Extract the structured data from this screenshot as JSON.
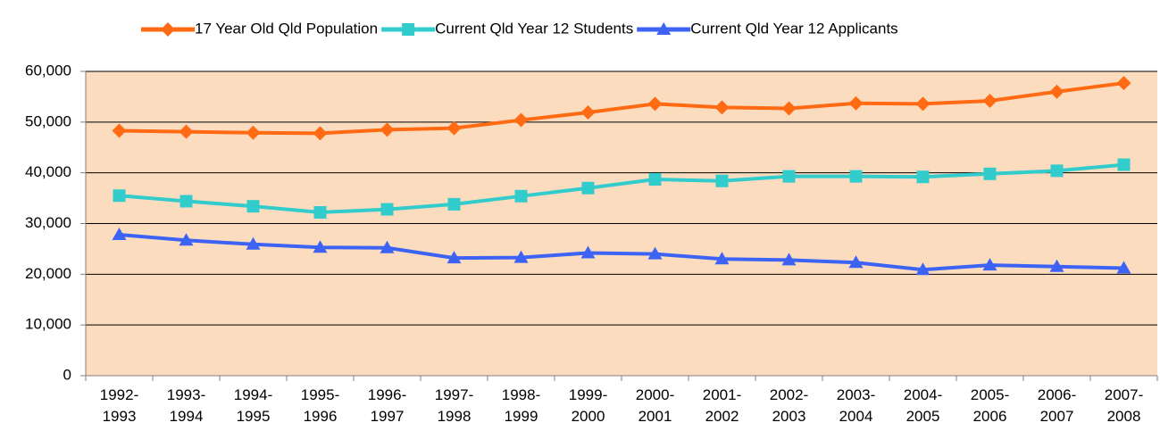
{
  "chart_data": {
    "type": "line",
    "categories": [
      "1992-1993",
      "1993-1994",
      "1994-1995",
      "1995-1996",
      "1996-1997",
      "1997-1998",
      "1998-1999",
      "1999-2000",
      "2000-2001",
      "2001-2002",
      "2002-2003",
      "2003-2004",
      "2004-2005",
      "2005-2006",
      "2006-2007",
      "2007-2008"
    ],
    "series": [
      {
        "name": "17 Year Old Qld Population",
        "color": "#ff6a13",
        "marker": "diamond",
        "values": [
          48300,
          48100,
          47900,
          47800,
          48500,
          48800,
          50400,
          51900,
          53600,
          52900,
          52700,
          53700,
          53600,
          54200,
          56000,
          57700
        ]
      },
      {
        "name": "Current Qld Year 12 Students",
        "color": "#33cccc",
        "marker": "square",
        "values": [
          35500,
          34400,
          33400,
          32200,
          32800,
          33800,
          35400,
          37000,
          38700,
          38400,
          39300,
          39300,
          39200,
          39800,
          40400,
          41600
        ]
      },
      {
        "name": "Current Qld Year 12 Applicants",
        "color": "#3d63f5",
        "marker": "triangle",
        "values": [
          27800,
          26700,
          25900,
          25300,
          25200,
          23200,
          23300,
          24200,
          24000,
          23000,
          22800,
          22300,
          20900,
          21800,
          21500,
          21200
        ]
      }
    ],
    "ylim": [
      0,
      60000
    ],
    "yticks": [
      0,
      {
        "value": 10000,
        "label": "10,000"
      },
      {
        "value": 20000,
        "label": "20,000"
      },
      {
        "value": 30000,
        "label": "30,000"
      },
      {
        "value": 40000,
        "label": "40,000"
      },
      {
        "value": 50000,
        "label": "50,000"
      },
      {
        "value": 60000,
        "label": "60,000"
      }
    ],
    "grid": true,
    "plot_background": "#fcdcbf",
    "legend": "top"
  }
}
